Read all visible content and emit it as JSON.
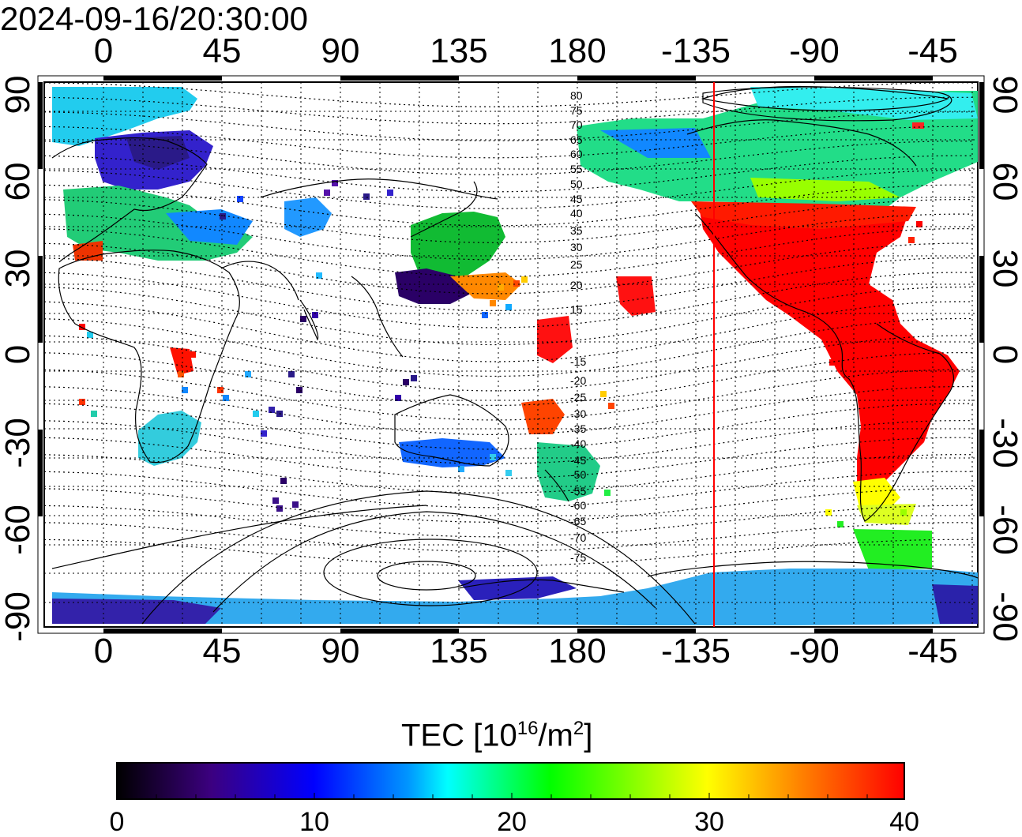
{
  "timestamp": "2024-09-16/20:30:00",
  "map": {
    "lon_tick_labels": [
      "0",
      "45",
      "90",
      "135",
      "180",
      "-135",
      "-90",
      "-45"
    ],
    "lat_tick_labels_left": [
      "90",
      "60",
      "30",
      "0",
      "-30",
      "-60",
      "-90"
    ],
    "lat_tick_labels_right": [
      "90",
      "60",
      "30",
      "0",
      "-30",
      "-60",
      "-90"
    ],
    "magnetic_latitude_labels": [
      "80",
      "75",
      "70",
      "65",
      "60",
      "55",
      "50",
      "45",
      "40",
      "35",
      "30",
      "25",
      "20",
      "15",
      "-15",
      "-20",
      "-25",
      "-30",
      "-35",
      "-40",
      "-45",
      "-50",
      "-55",
      "-60",
      "-65",
      "-70",
      "-75"
    ],
    "terminator_line_color": "#ff0000",
    "grid": true
  },
  "colorbar": {
    "label_main": "TEC  [10",
    "label_exp1": "16",
    "label_mid": "/m",
    "label_exp2": "2",
    "label_end": "]",
    "min": 0,
    "max": 40,
    "tick_labels": [
      "0",
      "10",
      "20",
      "30",
      "40"
    ],
    "colormap_stops": [
      "#000000",
      "#3c0080",
      "#0000ff",
      "#0096ff",
      "#00ffff",
      "#00ff00",
      "#ffff00",
      "#ff8000",
      "#ff0000"
    ]
  }
}
